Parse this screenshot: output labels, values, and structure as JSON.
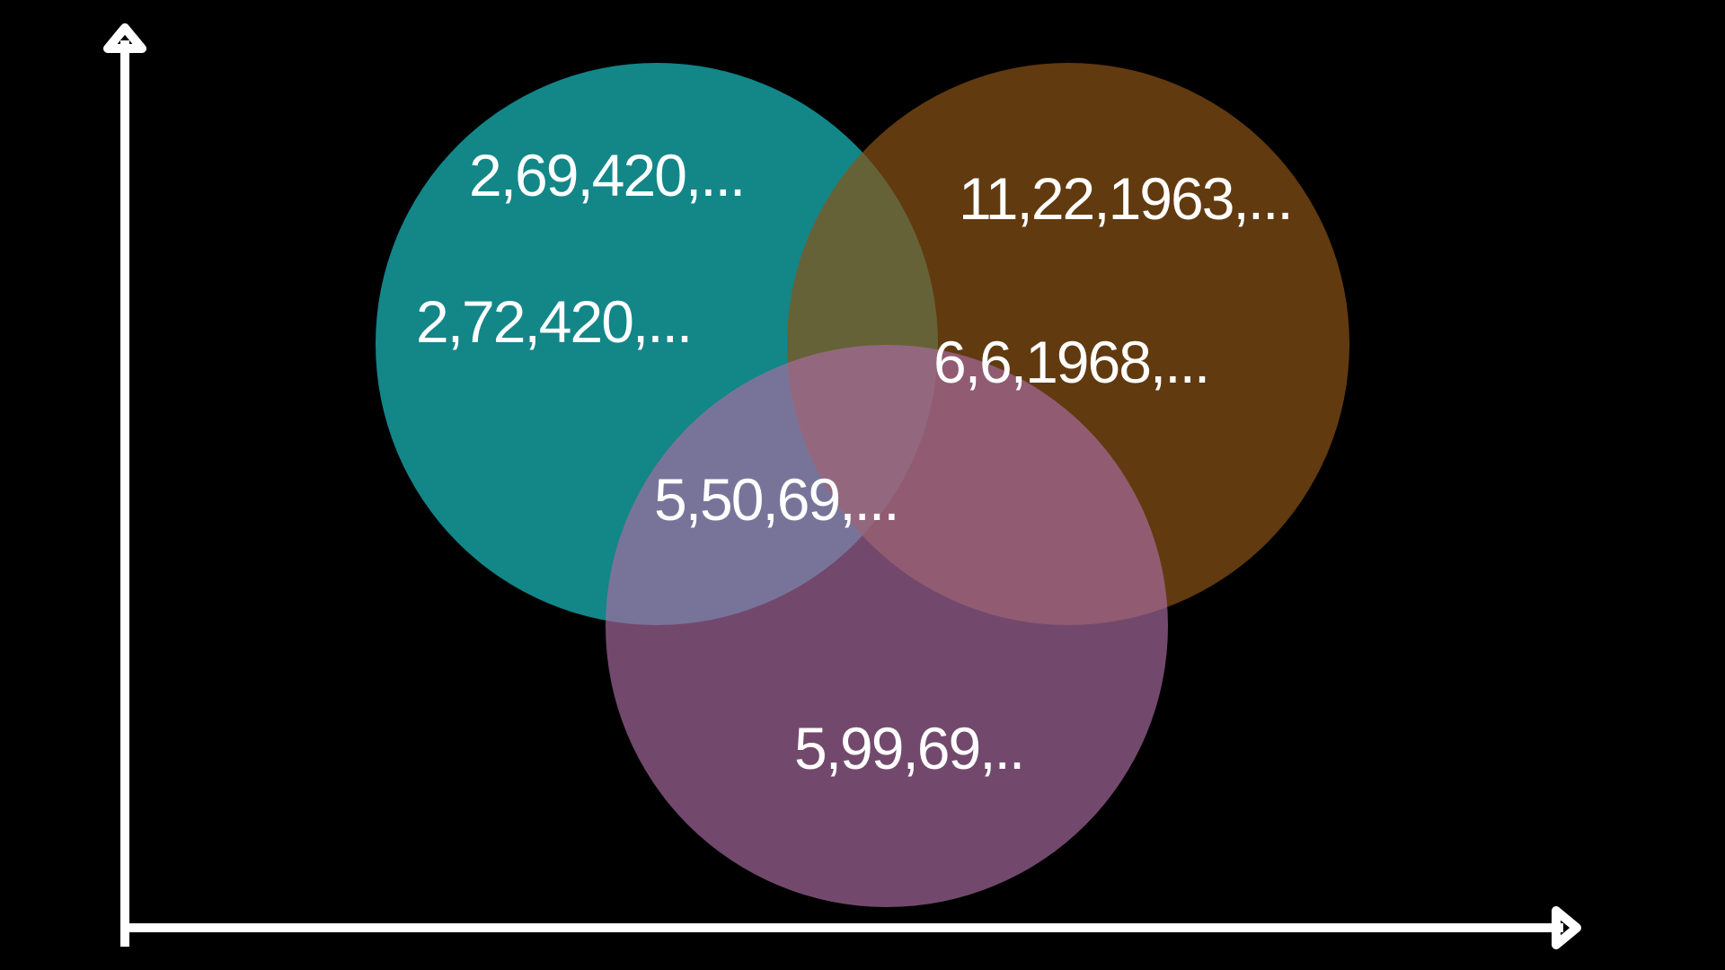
{
  "colors": {
    "background": "#000000",
    "circle_left": "#138688",
    "circle_right": "#8a5215",
    "circle_bottom": "#a86ba1",
    "axis": "#ffffff",
    "text": "#ffffff"
  },
  "labels": {
    "left_top": "2,69,420,...",
    "left_middle": "2,72,420,...",
    "right_top": "11,22,1963,...",
    "right_middle": "6,6,1968,...",
    "center": "5,50,69,...",
    "bottom": "5,99,69,.."
  }
}
